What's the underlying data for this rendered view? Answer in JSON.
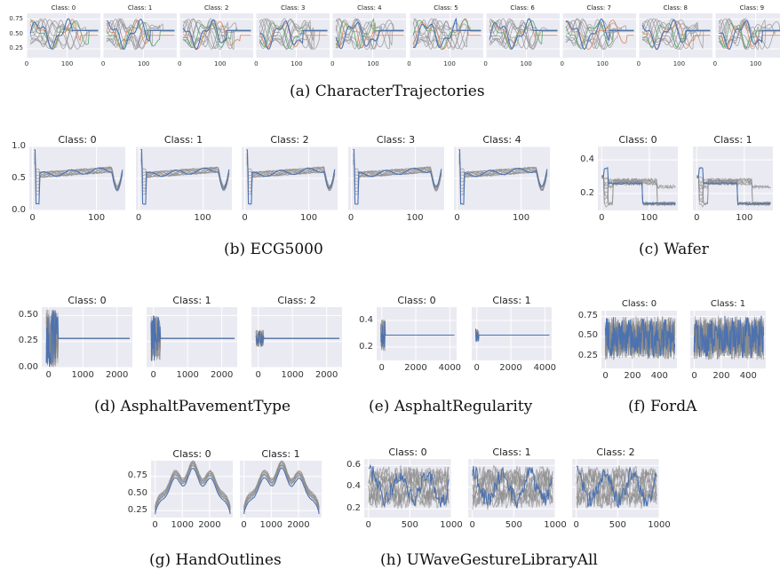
{
  "captions": {
    "a": "(a) CharacterTrajectories",
    "b": "(b) ECG5000",
    "c": "(c) Wafer",
    "d": "(d) AsphaltPavementType",
    "e": "(e) AsphaltRegularity",
    "f": "(f) FordA",
    "g": "(g) HandOutlines",
    "h": "(h) UWaveGestureLibraryAll"
  },
  "colors": {
    "background": "#eaeaf2",
    "grid": "#ffffff",
    "samples": "#8c8c8c",
    "highlight": "#4c72b0",
    "orange": "#dd8452",
    "green": "#55a868"
  },
  "chart_data": [
    {
      "id": "a",
      "type": "line",
      "dataset": "CharacterTrajectories",
      "panel_titles": [
        "Class: 0",
        "Class: 1",
        "Class: 2",
        "Class: 3",
        "Class: 4",
        "Class: 5",
        "Class: 6",
        "Class: 7",
        "Class: 8",
        "Class: 9"
      ],
      "xlim": [
        0,
        182
      ],
      "ylim": [
        0.1,
        0.85
      ],
      "xticks": [
        0,
        100
      ],
      "yticks": [
        0.25,
        0.5,
        0.75
      ],
      "ytick_labels": [
        "0.25",
        "0.50",
        "0.75"
      ],
      "series_colors": [
        "#4c72b0",
        "#dd8452",
        "#55a868",
        "#8c8c8c"
      ],
      "grid": true
    },
    {
      "id": "b",
      "type": "line",
      "dataset": "ECG5000",
      "panel_titles": [
        "Class: 0",
        "Class: 1",
        "Class: 2",
        "Class: 3",
        "Class: 4"
      ],
      "xlim": [
        -5,
        145
      ],
      "ylim": [
        0,
        1.0
      ],
      "xticks": [
        0,
        100
      ],
      "yticks": [
        0.0,
        0.5,
        1.0
      ],
      "ytick_labels": [
        "0.0",
        "0.5",
        "1.0"
      ],
      "series_colors": [
        "#4c72b0",
        "#8c8c8c"
      ],
      "grid": true
    },
    {
      "id": "c",
      "type": "line",
      "dataset": "Wafer",
      "panel_titles": [
        "Class: 0",
        "Class: 1"
      ],
      "xlim": [
        -8,
        160
      ],
      "ylim": [
        0.1,
        0.48
      ],
      "xticks": [
        0,
        100
      ],
      "yticks": [
        0.2,
        0.4
      ],
      "ytick_labels": [
        "0.2",
        "0.4"
      ],
      "series_colors": [
        "#4c72b0",
        "#8c8c8c"
      ],
      "grid": true
    },
    {
      "id": "d",
      "type": "line",
      "dataset": "AsphaltPavementType",
      "panel_titles": [
        "Class: 0",
        "Class: 1",
        "Class: 2"
      ],
      "xlim": [
        -200,
        2450
      ],
      "ylim": [
        0,
        0.58
      ],
      "xticks": [
        0,
        1000,
        2000
      ],
      "yticks": [
        0.0,
        0.25,
        0.5
      ],
      "ytick_labels": [
        "0.00",
        "0.25",
        "0.50"
      ],
      "series_colors": [
        "#4c72b0",
        "#8c8c8c"
      ],
      "grid": true
    },
    {
      "id": "e",
      "type": "line",
      "dataset": "AsphaltRegularity",
      "panel_titles": [
        "Class: 0",
        "Class: 1"
      ],
      "xlim": [
        -300,
        4400
      ],
      "ylim": [
        0.1,
        0.5
      ],
      "xticks": [
        0,
        2000,
        4000
      ],
      "yticks": [
        0.2,
        0.4
      ],
      "ytick_labels": [
        "0.2",
        "0.4"
      ],
      "series_colors": [
        "#4c72b0",
        "#8c8c8c"
      ],
      "grid": true
    },
    {
      "id": "f",
      "type": "line",
      "dataset": "FordA",
      "panel_titles": [
        "Class: 0",
        "Class: 1"
      ],
      "xlim": [
        -30,
        530
      ],
      "ylim": [
        0.1,
        0.82
      ],
      "xticks": [
        0,
        200,
        400
      ],
      "yticks": [
        0.25,
        0.5,
        0.75
      ],
      "ytick_labels": [
        "0.25",
        "0.50",
        "0.75"
      ],
      "series_colors": [
        "#4c72b0",
        "#8c8c8c"
      ],
      "grid": true
    },
    {
      "id": "g",
      "type": "line",
      "dataset": "HandOutlines",
      "panel_titles": [
        "Class: 0",
        "Class: 1"
      ],
      "xlim": [
        -150,
        2850
      ],
      "ylim": [
        0.15,
        0.98
      ],
      "xticks": [
        0,
        1000,
        2000
      ],
      "yticks": [
        0.25,
        0.5,
        0.75
      ],
      "ytick_labels": [
        "0.25",
        "0.50",
        "0.75"
      ],
      "series_colors": [
        "#4c72b0",
        "#8c8c8c"
      ],
      "grid": true
    },
    {
      "id": "h",
      "type": "line",
      "dataset": "UWaveGestureLibraryAll",
      "panel_titles": [
        "Class: 0",
        "Class: 1",
        "Class: 2"
      ],
      "xlim": [
        -50,
        1000
      ],
      "ylim": [
        0.12,
        0.66
      ],
      "xticks": [
        0,
        500,
        1000
      ],
      "yticks": [
        0.2,
        0.4,
        0.6
      ],
      "ytick_labels": [
        "0.2",
        "0.4",
        "0.6"
      ],
      "series_colors": [
        "#4c72b0",
        "#8c8c8c"
      ],
      "grid": true
    }
  ]
}
